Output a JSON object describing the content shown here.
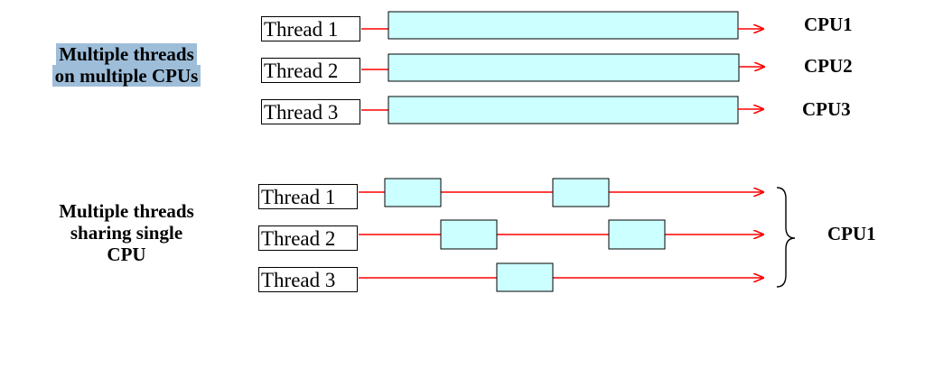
{
  "top_section": {
    "title_lines": [
      "Multiple threads",
      "on multiple CPUs"
    ],
    "threads": [
      {
        "label": "Thread 1",
        "cpu": "CPU1"
      },
      {
        "label": "Thread 2",
        "cpu": "CPU2"
      },
      {
        "label": "Thread 3",
        "cpu": "CPU3"
      }
    ]
  },
  "bottom_section": {
    "title_lines": [
      "Multiple threads",
      "sharing single",
      "CPU"
    ],
    "threads": [
      {
        "label": "Thread 1"
      },
      {
        "label": "Thread 2"
      },
      {
        "label": "Thread 3"
      }
    ],
    "cpu": "CPU1"
  },
  "colors": {
    "arrow": "#ff0000",
    "block_fill": "#ccffff",
    "highlight": "#9dbdd9"
  }
}
